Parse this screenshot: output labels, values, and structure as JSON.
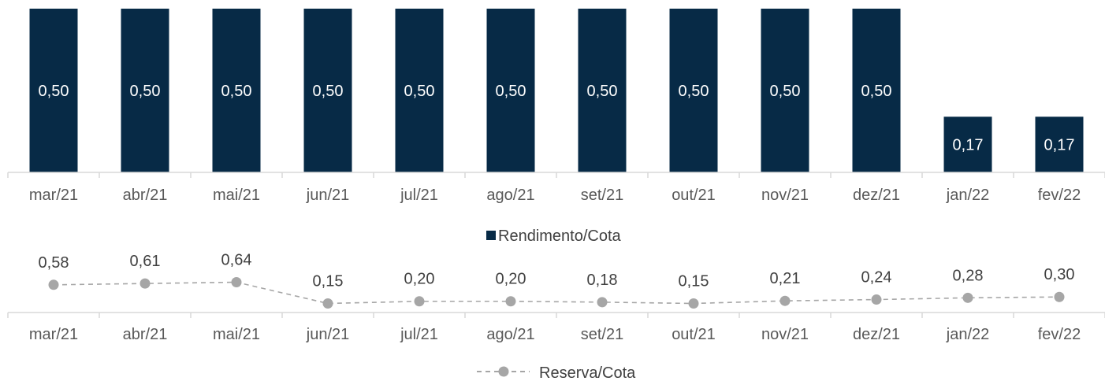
{
  "chart_data": [
    {
      "type": "bar",
      "categories": [
        "mar/21",
        "abr/21",
        "mai/21",
        "jun/21",
        "jul/21",
        "ago/21",
        "set/21",
        "out/21",
        "nov/21",
        "dez/21",
        "jan/22",
        "fev/22"
      ],
      "series": [
        {
          "name": "Rendimento/Cota",
          "values": [
            0.5,
            0.5,
            0.5,
            0.5,
            0.5,
            0.5,
            0.5,
            0.5,
            0.5,
            0.5,
            0.17,
            0.17
          ],
          "labels": [
            "0,50",
            "0,50",
            "0,50",
            "0,50",
            "0,50",
            "0,50",
            "0,50",
            "0,50",
            "0,50",
            "0,50",
            "0,17",
            "0,17"
          ]
        }
      ],
      "ylim": [
        0,
        0.5
      ],
      "legend_position": "bottom",
      "color": "#072A46"
    },
    {
      "type": "line",
      "categories": [
        "mar/21",
        "abr/21",
        "mai/21",
        "jun/21",
        "jul/21",
        "ago/21",
        "set/21",
        "out/21",
        "nov/21",
        "dez/21",
        "jan/22",
        "fev/22"
      ],
      "series": [
        {
          "name": "Reserva/Cota",
          "values": [
            0.58,
            0.61,
            0.64,
            0.15,
            0.2,
            0.2,
            0.18,
            0.15,
            0.21,
            0.24,
            0.28,
            0.3
          ],
          "labels": [
            "0,58",
            "0,61",
            "0,64",
            "0,15",
            "0,20",
            "0,20",
            "0,18",
            "0,15",
            "0,21",
            "0,24",
            "0,28",
            "0,30"
          ]
        }
      ],
      "legend_position": "bottom",
      "line_style": "dashed",
      "marker": "circle",
      "color": "#A6A6A6"
    }
  ]
}
